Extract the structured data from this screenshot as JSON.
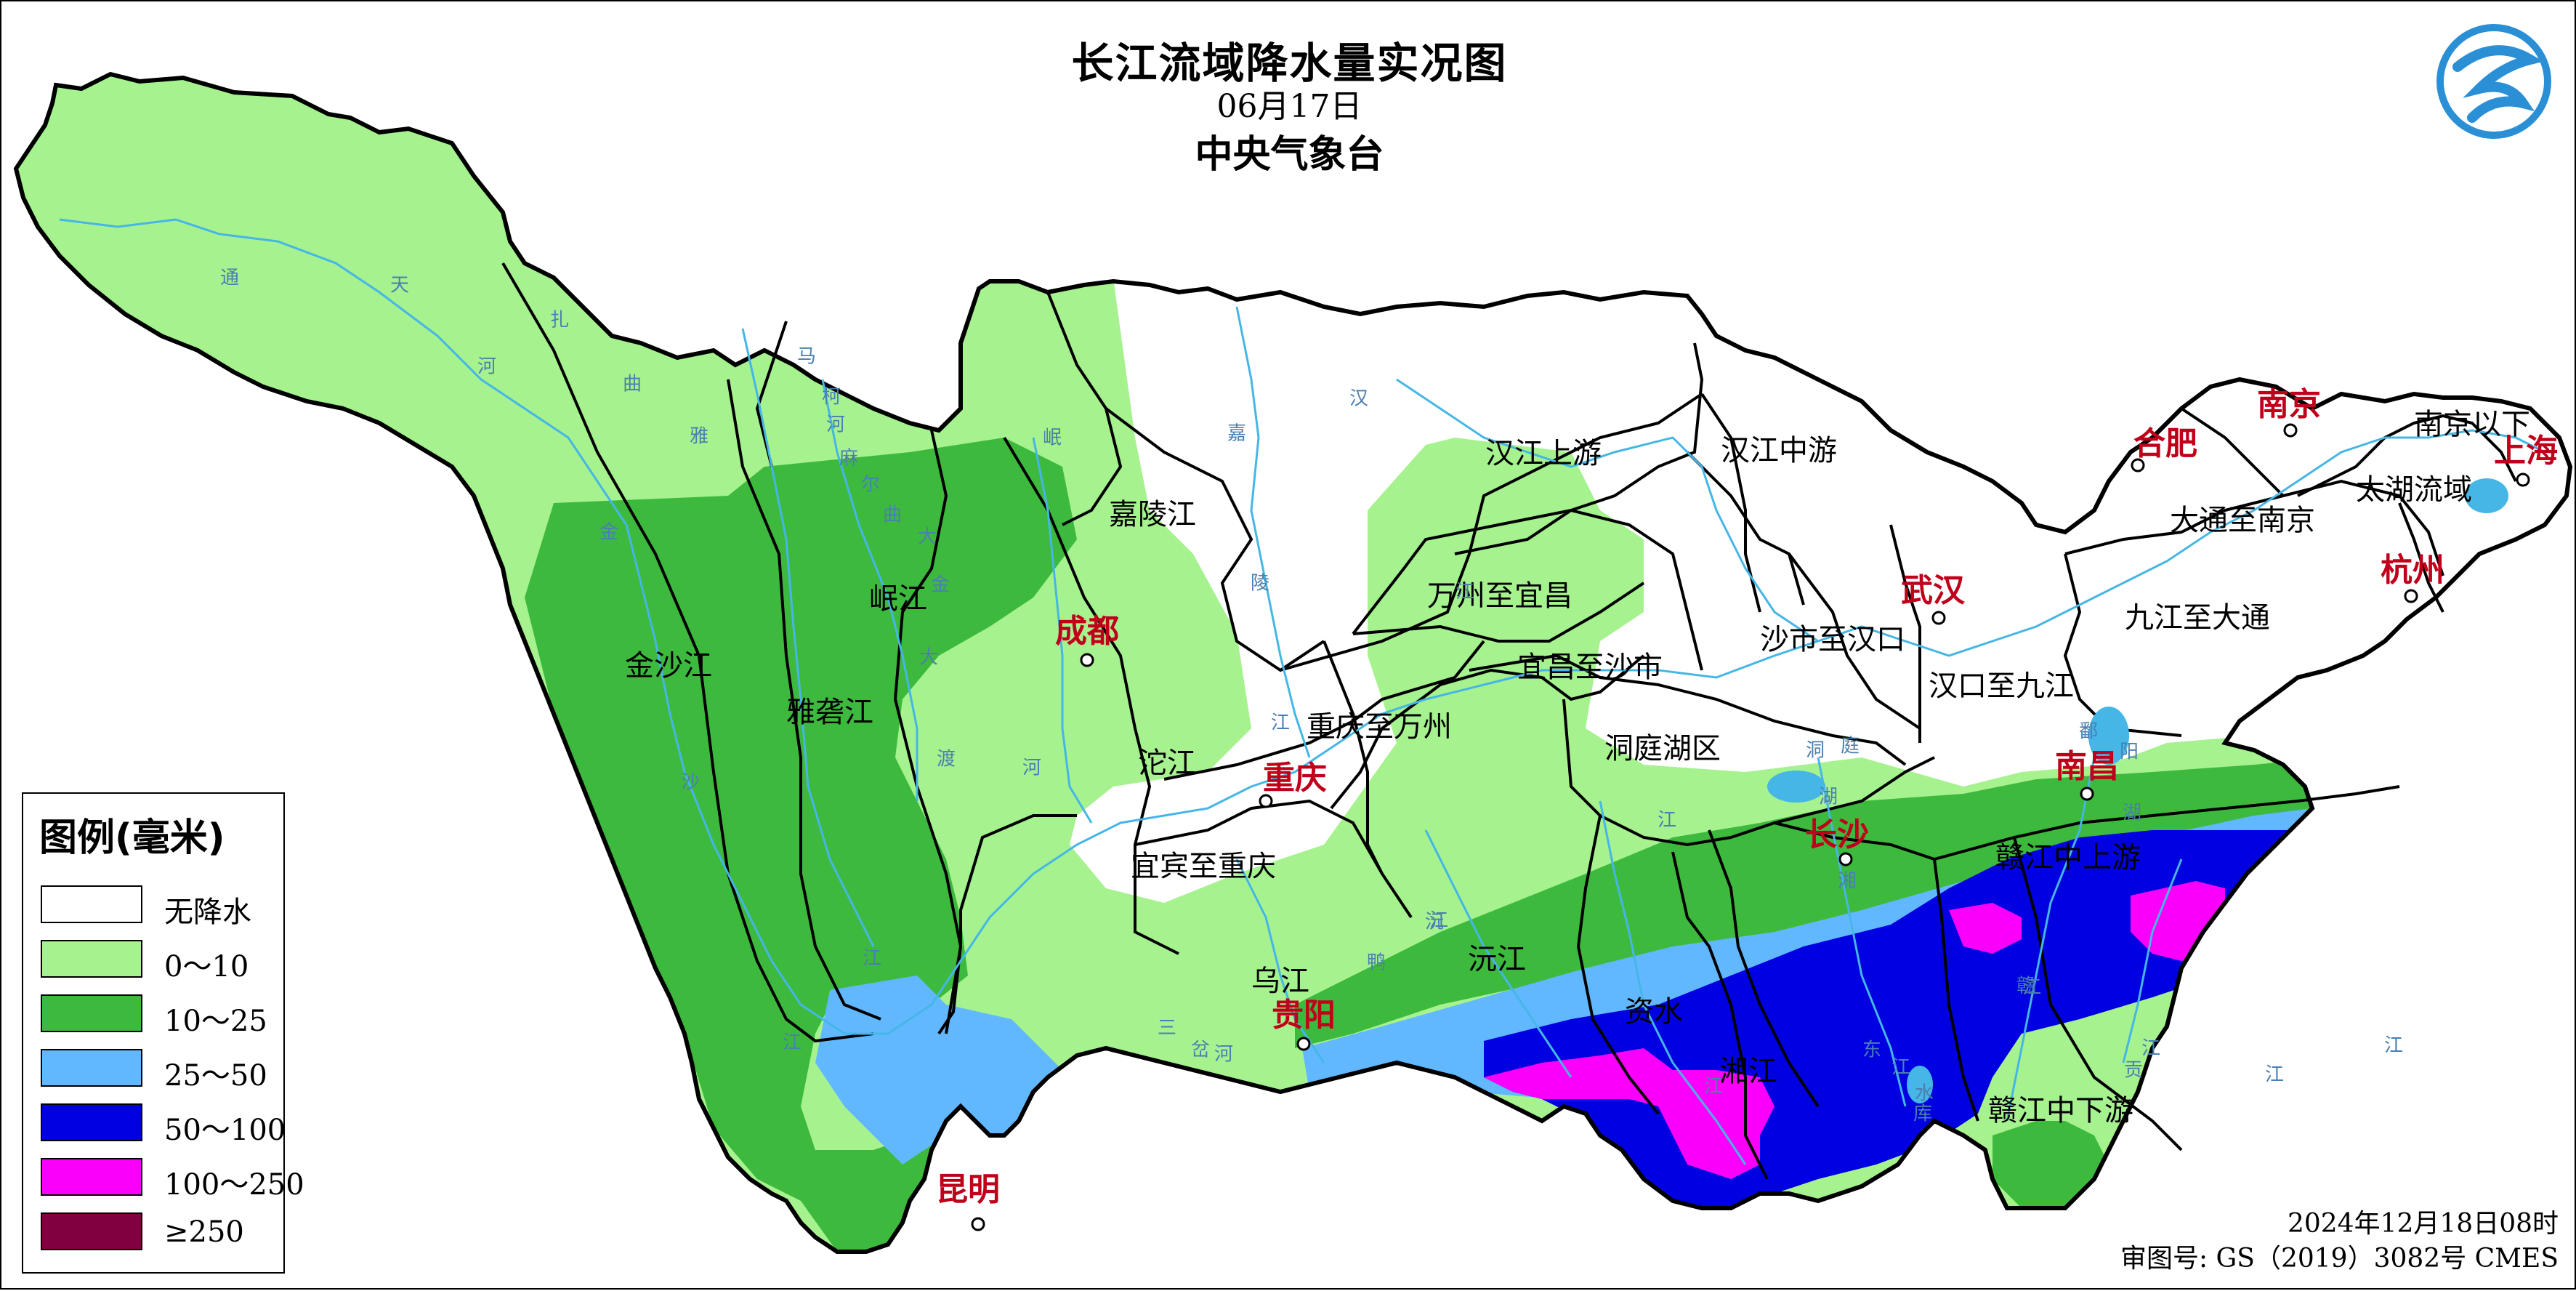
{
  "header": {
    "title": "长江流域降水量实况图",
    "date": "06月17日",
    "agency": "中央气象台"
  },
  "legend": {
    "title": "图例(毫米)",
    "items": [
      {
        "label": "无降水",
        "color": "#ffffff"
      },
      {
        "label": "0～10",
        "color": "#a6f28f"
      },
      {
        "label": "10～25",
        "color": "#3dba3d"
      },
      {
        "label": "25～50",
        "color": "#61b8ff"
      },
      {
        "label": "50～100",
        "color": "#0000e1"
      },
      {
        "label": "100～250",
        "color": "#fa00fa"
      },
      {
        "label": "≥250",
        "color": "#800040"
      }
    ]
  },
  "regions": [
    "金沙江",
    "雅砻江",
    "岷江",
    "嘉陵江",
    "沱江",
    "宜宾至重庆",
    "重庆至万州",
    "乌江",
    "万州至宜昌",
    "汉江上游",
    "汉江中游",
    "宜昌至沙市",
    "沙市至汉口",
    "洞庭湖区",
    "沅江",
    "资水",
    "湘江",
    "汉口至九江",
    "九江至大通",
    "赣江中上游",
    "赣江中下游",
    "大通至南京",
    "南京以下",
    "太湖流域"
  ],
  "cities": [
    "成都",
    "重庆",
    "贵阳",
    "昆明",
    "长沙",
    "武汉",
    "南昌",
    "合肥",
    "南京",
    "杭州",
    "上海"
  ],
  "river_labels": [
    "通",
    "天",
    "河",
    "扎",
    "曲",
    "雅",
    "金",
    "马",
    "柯",
    "河",
    "麻",
    "尔",
    "曲",
    "大",
    "金",
    "大",
    "渡",
    "河",
    "岷",
    "嘉",
    "陵",
    "江",
    "沙",
    "江",
    "江",
    "三",
    "岔",
    "河",
    "鸭",
    "沅",
    "江",
    "汉",
    "江",
    "洞",
    "庭",
    "湖",
    "湘",
    "江",
    "东",
    "江",
    "水",
    "库",
    "江",
    "鄱",
    "阳",
    "湖",
    "赣",
    "江",
    "贡",
    "江",
    "江",
    "江"
  ],
  "footer": {
    "issued": "2024年12月18日08时",
    "review": "审图号: GS（2019）3082号 CMES"
  },
  "colors": {
    "none": "#ffffff",
    "r0_10": "#a6f28f",
    "r10_25": "#3dba3d",
    "r25_50": "#61b8ff",
    "r50_100": "#0000e1",
    "r100_250": "#fa00fa",
    "city": "#c0001a",
    "river": "#45b6e6",
    "logo": "#2b8fd6"
  }
}
